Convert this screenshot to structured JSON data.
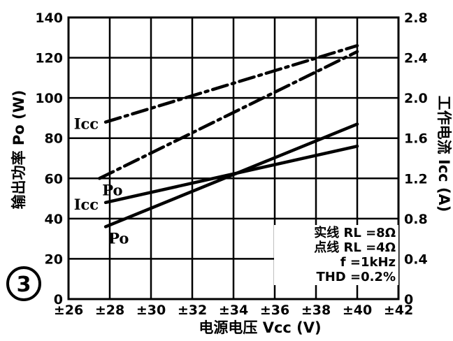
{
  "chart_data": {
    "type": "line",
    "figure_number": "3",
    "xlabel": "电源电压 Vcc (V)",
    "ylabel_left": "输出功率 Po (W)",
    "ylabel_right": "工作电流 Icc (A)",
    "xlim": [
      26,
      42
    ],
    "ylim_left": [
      0,
      140
    ],
    "ylim_right": [
      0,
      2.8
    ],
    "grid": true,
    "x_ticks": [
      "±26",
      "±28",
      "±30",
      "±32",
      "±34",
      "±36",
      "±38",
      "±40",
      "±42"
    ],
    "y_ticks_left": [
      "0",
      "20",
      "40",
      "60",
      "80",
      "100",
      "120",
      "140"
    ],
    "y_ticks_right": [
      "0",
      "0.4",
      "0.8",
      "1.2",
      "1.6",
      "2.0",
      "2.4",
      "2.8"
    ],
    "series": [
      {
        "name": "Icc",
        "axis": "right",
        "style": "dash-dot",
        "x": [
          27.8,
          40
        ],
        "y": [
          1.76,
          2.52
        ]
      },
      {
        "name": "Po",
        "axis": "left",
        "style": "dash-dot",
        "x": [
          27.5,
          40
        ],
        "y": [
          60,
          123
        ]
      },
      {
        "name": "Po",
        "axis": "left",
        "style": "solid",
        "x": [
          27.8,
          40
        ],
        "y": [
          36,
          87
        ]
      },
      {
        "name": "Icc",
        "axis": "right",
        "style": "solid",
        "x": [
          27.8,
          40
        ],
        "y": [
          0.96,
          1.52
        ]
      }
    ],
    "legend": {
      "position": "bottom-right",
      "lines": [
        "实线 RL =8Ω",
        "点线 RL =4Ω",
        "f =1kHz",
        "THD =0.2%"
      ]
    }
  }
}
